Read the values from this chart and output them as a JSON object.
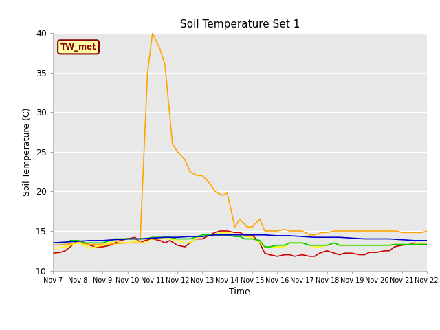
{
  "title": "Soil Temperature Set 1",
  "xlabel": "Time",
  "ylabel": "Soil Temperature (C)",
  "ylim": [
    10,
    40
  ],
  "bg_color": "#e8e8e8",
  "grid_color": "#ffffff",
  "annotation_text": "TW_met",
  "annotation_bg": "#ffffaa",
  "annotation_border": "#8b0000",
  "fig_bg": "#ffffff",
  "series": {
    "SoilT1_02": {
      "color": "#cc0000",
      "x": [
        7.0,
        7.3,
        7.5,
        7.7,
        8.0,
        8.3,
        8.5,
        8.7,
        9.0,
        9.3,
        9.5,
        9.7,
        10.0,
        10.3,
        10.5,
        10.7,
        11.0,
        11.3,
        11.5,
        11.7,
        12.0,
        12.3,
        12.5,
        12.7,
        13.0,
        13.3,
        13.5,
        13.7,
        14.0,
        14.3,
        14.5,
        14.7,
        15.0,
        15.3,
        15.5,
        15.7,
        16.0,
        16.3,
        16.5,
        16.7,
        17.0,
        17.3,
        17.5,
        17.7,
        18.0,
        18.3,
        18.5,
        18.7,
        19.0,
        19.3,
        19.5,
        19.7,
        20.0,
        20.3,
        20.5,
        20.7,
        21.0,
        21.3,
        21.5,
        21.7,
        22.0
      ],
      "y": [
        12.2,
        12.3,
        12.5,
        13.0,
        13.8,
        13.5,
        13.2,
        13.0,
        13.0,
        13.2,
        13.5,
        13.8,
        14.0,
        14.2,
        13.5,
        13.8,
        14.0,
        13.8,
        13.5,
        13.8,
        13.2,
        13.0,
        13.5,
        14.0,
        14.0,
        14.5,
        14.8,
        15.0,
        15.0,
        14.8,
        14.8,
        14.5,
        14.5,
        13.5,
        12.2,
        12.0,
        11.8,
        12.0,
        12.0,
        11.8,
        12.0,
        11.8,
        11.8,
        12.2,
        12.5,
        12.2,
        12.0,
        12.2,
        12.2,
        12.0,
        12.0,
        12.3,
        12.3,
        12.5,
        12.5,
        13.0,
        13.2,
        13.3,
        13.5,
        13.3,
        13.3
      ]
    },
    "SoilT1_04": {
      "color": "#ffa500",
      "x": [
        7.0,
        7.5,
        8.0,
        8.5,
        9.0,
        9.5,
        10.0,
        10.5,
        10.8,
        11.0,
        11.3,
        11.5,
        11.8,
        12.0,
        12.3,
        12.5,
        12.8,
        13.0,
        13.3,
        13.5,
        13.8,
        14.0,
        14.3,
        14.5,
        14.8,
        15.0,
        15.3,
        15.5,
        15.8,
        16.0,
        16.3,
        16.5,
        16.8,
        17.0,
        17.3,
        17.5,
        17.8,
        18.0,
        18.3,
        18.5,
        18.8,
        19.0,
        19.3,
        19.5,
        19.8,
        20.0,
        20.3,
        20.5,
        20.8,
        21.0,
        21.3,
        21.5,
        21.8,
        22.0
      ],
      "y": [
        13.2,
        13.3,
        13.5,
        13.3,
        13.3,
        13.4,
        13.5,
        13.5,
        35.0,
        40.0,
        38.0,
        36.0,
        26.0,
        25.0,
        24.0,
        22.5,
        22.0,
        22.0,
        21.0,
        20.0,
        19.5,
        19.8,
        15.5,
        16.5,
        15.5,
        15.5,
        16.5,
        15.0,
        15.0,
        15.0,
        15.2,
        15.0,
        15.0,
        15.0,
        14.5,
        14.5,
        14.8,
        14.8,
        15.0,
        15.0,
        15.0,
        15.0,
        15.0,
        15.0,
        15.0,
        15.0,
        15.0,
        15.0,
        15.0,
        14.8,
        14.8,
        14.8,
        14.8,
        15.0
      ]
    },
    "SoilT1_08": {
      "color": "#ffff00",
      "x": [
        7.0,
        7.3,
        7.5,
        7.7,
        8.0,
        8.3,
        8.5,
        8.7,
        9.0,
        9.3,
        9.5,
        9.7,
        10.0,
        10.3,
        10.5,
        10.7,
        11.0,
        11.3,
        11.5,
        11.7,
        12.0,
        12.3,
        12.5,
        12.7,
        13.0,
        13.3,
        13.5,
        13.7,
        14.0,
        14.3,
        14.5,
        14.7,
        15.0,
        15.3,
        15.5,
        15.7,
        16.0,
        16.3,
        16.5,
        16.7,
        17.0,
        17.3,
        17.5,
        17.7,
        18.0,
        18.3,
        18.5,
        18.7,
        19.0,
        19.3,
        19.5,
        19.7,
        20.0,
        20.3,
        20.5,
        20.7,
        21.0,
        21.3,
        21.5,
        21.7,
        22.0
      ],
      "y": [
        12.8,
        12.9,
        13.0,
        13.2,
        13.5,
        13.2,
        12.8,
        13.0,
        13.2,
        13.5,
        13.8,
        13.5,
        13.5,
        13.8,
        13.5,
        13.5,
        14.0,
        14.0,
        14.0,
        14.0,
        13.8,
        13.5,
        13.5,
        14.0,
        14.5,
        14.5,
        14.5,
        14.8,
        14.8,
        14.5,
        14.5,
        14.3,
        14.2,
        13.5,
        13.0,
        13.0,
        13.0,
        13.0,
        13.5,
        13.5,
        13.5,
        13.2,
        13.0,
        13.0,
        13.2,
        13.5,
        13.2,
        13.2,
        13.2,
        13.2,
        13.2,
        13.2,
        13.2,
        13.2,
        13.2,
        13.3,
        13.3,
        13.3,
        13.3,
        13.5,
        13.5
      ]
    },
    "SoilT1_16": {
      "color": "#00cc00",
      "x": [
        7.0,
        7.3,
        7.5,
        7.7,
        8.0,
        8.3,
        8.5,
        8.7,
        9.0,
        9.3,
        9.5,
        9.7,
        10.0,
        10.3,
        10.5,
        10.7,
        11.0,
        11.3,
        11.5,
        11.7,
        12.0,
        12.3,
        12.5,
        12.7,
        13.0,
        13.3,
        13.5,
        13.7,
        14.0,
        14.3,
        14.5,
        14.7,
        15.0,
        15.3,
        15.5,
        15.7,
        16.0,
        16.3,
        16.5,
        16.7,
        17.0,
        17.3,
        17.5,
        17.7,
        18.0,
        18.3,
        18.5,
        18.7,
        19.0,
        19.3,
        19.5,
        19.7,
        20.0,
        20.3,
        20.5,
        20.7,
        21.0,
        21.3,
        21.5,
        21.7,
        22.0
      ],
      "y": [
        13.5,
        13.5,
        13.5,
        13.8,
        13.8,
        13.5,
        13.5,
        13.5,
        13.5,
        13.8,
        14.0,
        14.0,
        14.0,
        14.0,
        14.0,
        14.0,
        14.2,
        14.2,
        14.2,
        14.2,
        14.0,
        14.0,
        14.0,
        14.2,
        14.5,
        14.5,
        14.5,
        14.5,
        14.5,
        14.3,
        14.3,
        14.0,
        14.0,
        13.8,
        13.0,
        13.0,
        13.2,
        13.2,
        13.5,
        13.5,
        13.5,
        13.2,
        13.2,
        13.2,
        13.2,
        13.5,
        13.2,
        13.2,
        13.2,
        13.2,
        13.2,
        13.2,
        13.2,
        13.2,
        13.2,
        13.3,
        13.3,
        13.3,
        13.3,
        13.3,
        13.3
      ]
    },
    "SoilT1_32": {
      "color": "#0000cc",
      "x": [
        7.0,
        7.5,
        8.0,
        8.5,
        9.0,
        9.5,
        10.0,
        10.5,
        11.0,
        11.5,
        12.0,
        12.5,
        13.0,
        13.5,
        14.0,
        14.5,
        15.0,
        15.5,
        16.0,
        16.5,
        17.0,
        17.5,
        18.0,
        18.5,
        19.0,
        19.5,
        20.0,
        20.5,
        21.0,
        21.5,
        22.0
      ],
      "y": [
        13.5,
        13.6,
        13.7,
        13.8,
        13.8,
        13.9,
        14.0,
        14.0,
        14.1,
        14.2,
        14.2,
        14.3,
        14.3,
        14.5,
        14.5,
        14.5,
        14.5,
        14.5,
        14.4,
        14.4,
        14.3,
        14.2,
        14.2,
        14.2,
        14.1,
        14.0,
        14.0,
        14.0,
        13.9,
        13.8,
        13.8
      ]
    }
  },
  "xticks": [
    7,
    8,
    9,
    10,
    11,
    12,
    13,
    14,
    15,
    16,
    17,
    18,
    19,
    20,
    21,
    22
  ],
  "xtick_labels": [
    "Nov 7",
    "Nov 8",
    "Nov 9",
    "Nov 10",
    "Nov 11",
    "Nov 12",
    "Nov 13",
    "Nov 14",
    "Nov 15",
    "Nov 16",
    "Nov 17",
    "Nov 18",
    "Nov 19",
    "Nov 20",
    "Nov 21",
    "Nov 22"
  ],
  "yticks": [
    10,
    15,
    20,
    25,
    30,
    35,
    40
  ]
}
